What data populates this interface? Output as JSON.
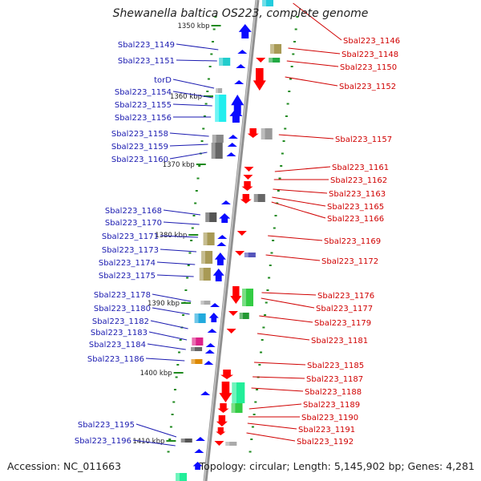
{
  "title": "Shewanella baltica OS223, complete genome",
  "footer": {
    "accession": "Accession: NC_011663",
    "topology": "Topology: circular; Length: 5,145,902 bp; Genes: 4,281"
  },
  "colors": {
    "backbone": "#8f8f8f",
    "plus_strand": "#0b0bff",
    "minus_strand": "#ff0000",
    "ruler_dash": "#1f8a1f",
    "label_left": "#1a1ab0",
    "label_right": "#d00000",
    "leader_left": "#1a1ab0",
    "leader_right": "#d00000"
  },
  "ticks": [
    {
      "label": "1350 kbp",
      "icon": "tick"
    },
    {
      "label": "1360 kbp",
      "icon": "tick"
    },
    {
      "label": "1370 kbp",
      "icon": "tick"
    },
    {
      "label": "1380 kbp",
      "icon": "tick"
    },
    {
      "label": "1390 kbp",
      "icon": "tick"
    },
    {
      "label": "1400 kbp",
      "icon": "tick"
    },
    {
      "label": "1410 kbp",
      "icon": "tick"
    }
  ],
  "left_labels": [
    "Sbal223_1149",
    "Sbal223_1151",
    "torD",
    "Sbal223_1154",
    "Sbal223_1155",
    "Sbal223_1156",
    "Sbal223_1158",
    "Sbal223_1159",
    "Sbal223_1160",
    "Sbal223_1168",
    "Sbal223_1170",
    "Sbal223_1171",
    "Sbal223_1173",
    "Sbal223_1174",
    "Sbal223_1175",
    "Sbal223_1178",
    "Sbal223_1180",
    "Sbal223_1182",
    "Sbal223_1183",
    "Sbal223_1184",
    "Sbal223_1186",
    "Sbal223_1195",
    "Sbal223_1196"
  ],
  "right_labels": [
    "Sbal223_1146",
    "Sbal223_1148",
    "Sbal223_1150",
    "Sbal223_1152",
    "Sbal223_1157",
    "Sbal223_1161",
    "Sbal223_1162",
    "Sbal223_1163",
    "Sbal223_1165",
    "Sbal223_1166",
    "Sbal223_1169",
    "Sbal223_1172",
    "Sbal223_1176",
    "Sbal223_1177",
    "Sbal223_1179",
    "Sbal223_1181",
    "Sbal223_1185",
    "Sbal223_1187",
    "Sbal223_1188",
    "Sbal223_1189",
    "Sbal223_1190",
    "Sbal223_1191",
    "Sbal223_1192"
  ],
  "genes": [
    {
      "strand": "+",
      "kind": "arrow",
      "color": "#0b0bff"
    },
    {
      "strand": "+",
      "kind": "arrow",
      "color": "#0b0bff"
    },
    {
      "strand": "+",
      "kind": "box",
      "color": "#22cccc"
    },
    {
      "strand": "+",
      "kind": "box",
      "color": "#22eeee"
    },
    {
      "strand": "+",
      "kind": "arrow",
      "color": "#0b0bff"
    },
    {
      "strand": "+",
      "kind": "box",
      "color": "#888888"
    },
    {
      "strand": "+",
      "kind": "arrow",
      "color": "#0b0bff"
    },
    {
      "strand": "+",
      "kind": "box",
      "color": "#666666"
    },
    {
      "strand": "+",
      "kind": "box",
      "color": "#a89a55"
    },
    {
      "strand": "+",
      "kind": "box",
      "color": "#a89a55"
    },
    {
      "strand": "+",
      "kind": "box",
      "color": "#a89a55"
    },
    {
      "strand": "+",
      "kind": "box",
      "color": "#22aadd"
    },
    {
      "strand": "+",
      "kind": "box",
      "color": "#dd2288"
    },
    {
      "strand": "+",
      "kind": "box",
      "color": "#dd8800"
    },
    {
      "strand": "-",
      "kind": "box",
      "color": "#a89a55"
    },
    {
      "strand": "-",
      "kind": "box",
      "color": "#22aa44"
    },
    {
      "strand": "-",
      "kind": "arrow",
      "color": "#ff0000"
    },
    {
      "strand": "-",
      "kind": "box",
      "color": "#999999"
    },
    {
      "strand": "-",
      "kind": "box",
      "color": "#666666"
    },
    {
      "strand": "-",
      "kind": "box",
      "color": "#5555bb"
    },
    {
      "strand": "-",
      "kind": "box",
      "color": "#33cc44"
    },
    {
      "strand": "-",
      "kind": "box",
      "color": "#22ee99"
    },
    {
      "strand": "-",
      "kind": "box",
      "color": "#888888"
    }
  ]
}
